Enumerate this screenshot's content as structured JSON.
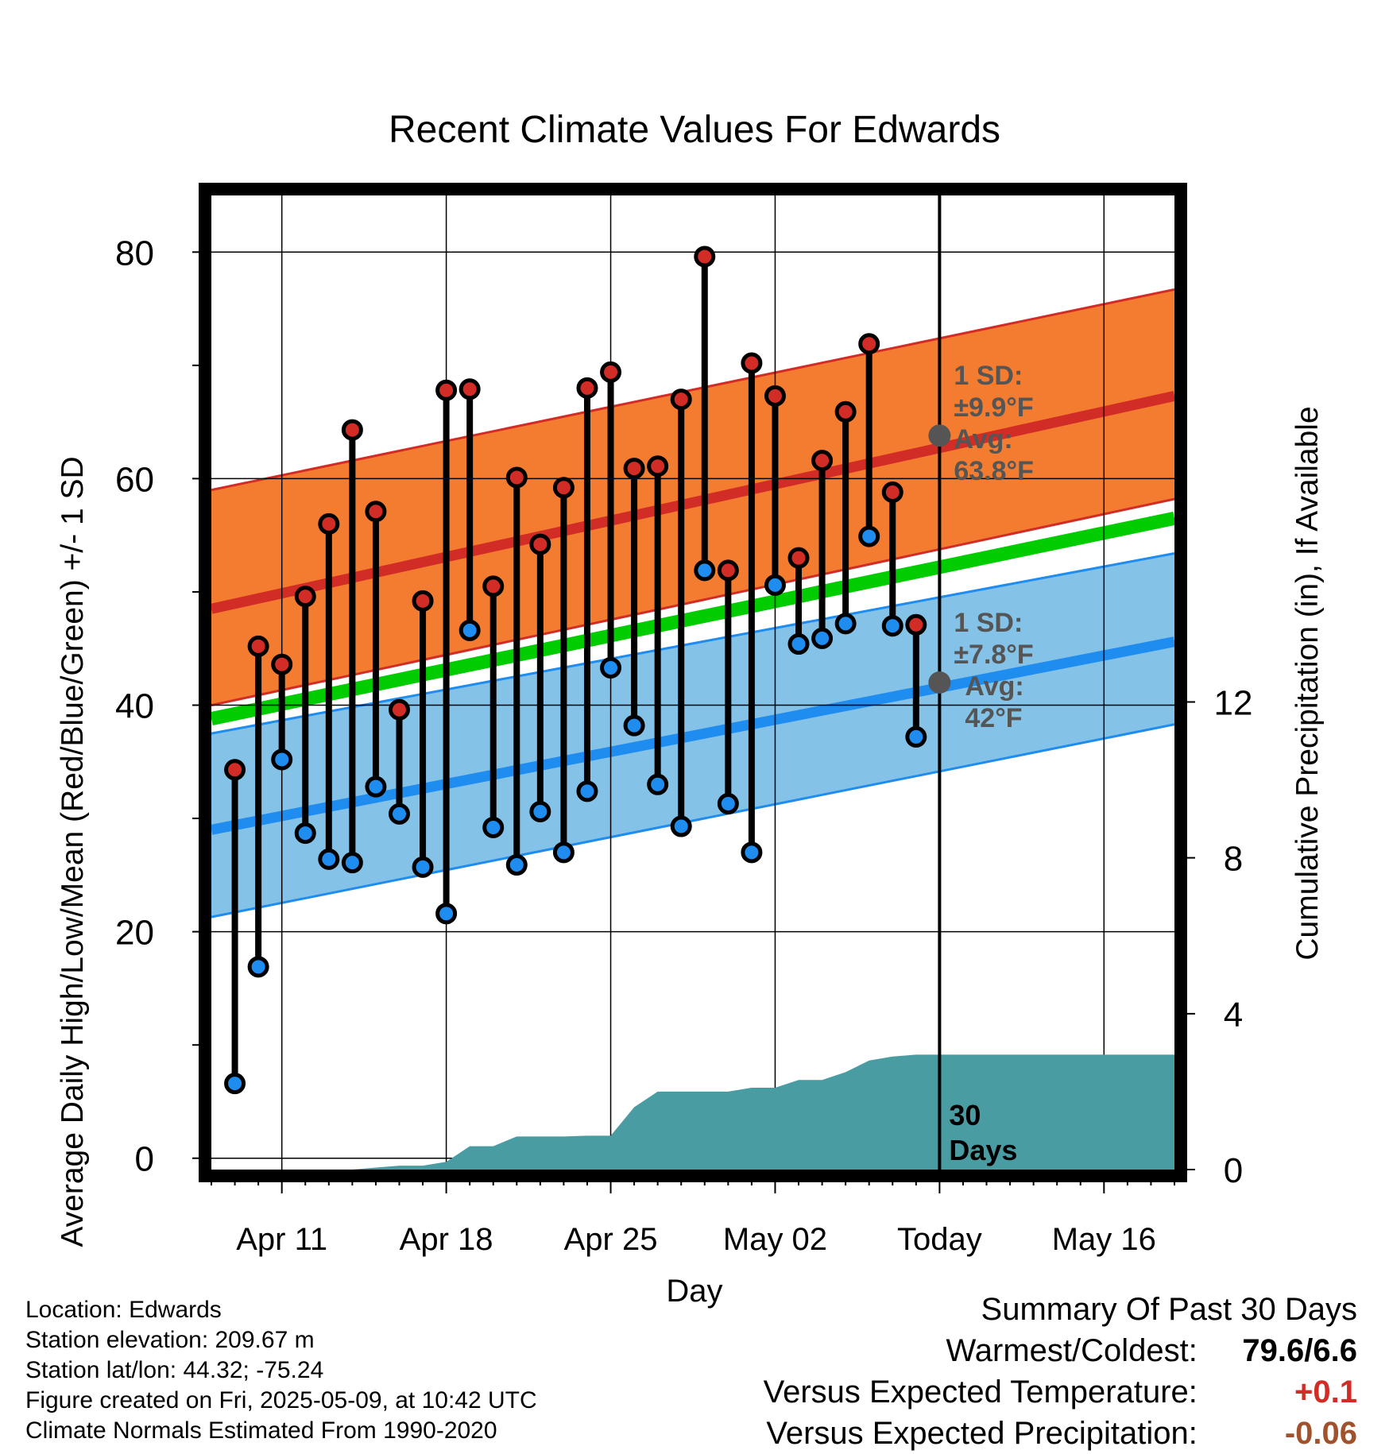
{
  "chart_data": {
    "type": "line",
    "title": "Recent Climate Values For Edwards",
    "xlabel": "Day",
    "ylabel": "Average Daily High/Low/Mean (Red/Blue/Green) +/- 1 SD",
    "y2label": "Cumulative Precipitation (in), If Available",
    "ylim": [
      -1,
      85
    ],
    "y2lim": [
      0,
      25
    ],
    "yticks": [
      0,
      20,
      40,
      60,
      80
    ],
    "y2ticks": [
      0,
      4,
      8,
      12
    ],
    "xlim": [
      "2025-04-08",
      "2025-05-19"
    ],
    "xticks": [
      {
        "date": "2025-04-11",
        "label": "Apr 11"
      },
      {
        "date": "2025-04-18",
        "label": "Apr 18"
      },
      {
        "date": "2025-04-25",
        "label": "Apr 25"
      },
      {
        "date": "2025-05-02",
        "label": "May 02"
      },
      {
        "date": "2025-05-09",
        "label": "Today"
      },
      {
        "date": "2025-05-16",
        "label": "May 16"
      }
    ],
    "today": "2025-05-09",
    "period_label": [
      "30",
      "Days"
    ],
    "colors": {
      "high": "#d22c26",
      "low": "#1f8cf0",
      "mean": "#00cc00",
      "high_band": "#f47c30",
      "low_band": "#84c2e8",
      "precip": "#4a9ca3",
      "annotation": "#555555"
    },
    "normals": {
      "dates": [
        "2025-04-08",
        "2025-05-19"
      ],
      "high_mean": [
        48.5,
        67.3
      ],
      "high_upper": [
        59.0,
        76.7
      ],
      "high_lower": [
        40.0,
        58.2
      ],
      "low_mean": [
        29.0,
        45.6
      ],
      "low_upper": [
        37.5,
        53.4
      ],
      "low_lower": [
        21.3,
        38.3
      ],
      "mean": [
        38.8,
        56.5
      ]
    },
    "daily": {
      "dates": [
        "2025-04-09",
        "2025-04-10",
        "2025-04-11",
        "2025-04-12",
        "2025-04-13",
        "2025-04-14",
        "2025-04-15",
        "2025-04-16",
        "2025-04-17",
        "2025-04-18",
        "2025-04-19",
        "2025-04-20",
        "2025-04-21",
        "2025-04-22",
        "2025-04-23",
        "2025-04-24",
        "2025-04-25",
        "2025-04-26",
        "2025-04-27",
        "2025-04-28",
        "2025-04-29",
        "2025-04-30",
        "2025-05-01",
        "2025-05-02",
        "2025-05-03",
        "2025-05-04",
        "2025-05-05",
        "2025-05-06",
        "2025-05-07",
        "2025-05-08"
      ],
      "high": [
        34.3,
        45.2,
        43.6,
        49.6,
        56.0,
        64.3,
        57.1,
        39.6,
        49.2,
        67.8,
        67.9,
        50.5,
        60.1,
        54.2,
        59.2,
        68.0,
        69.4,
        60.9,
        61.1,
        67.0,
        79.6,
        51.9,
        70.2,
        67.3,
        53.0,
        61.6,
        65.9,
        71.9,
        58.8,
        47.1
      ],
      "low": [
        6.6,
        16.9,
        35.2,
        28.7,
        26.4,
        26.1,
        32.8,
        30.4,
        25.7,
        21.6,
        46.6,
        29.2,
        25.9,
        30.6,
        27.0,
        32.4,
        43.3,
        38.2,
        33.0,
        29.3,
        51.9,
        31.3,
        27.0,
        50.6,
        45.4,
        45.9,
        47.2,
        54.9,
        47.0,
        37.2
      ]
    },
    "precip": {
      "dates": [
        "2025-04-08",
        "2025-04-12",
        "2025-04-13",
        "2025-04-14",
        "2025-04-15",
        "2025-04-16",
        "2025-04-17",
        "2025-04-18",
        "2025-04-19",
        "2025-04-20",
        "2025-04-21",
        "2025-04-22",
        "2025-04-23",
        "2025-04-24",
        "2025-04-25",
        "2025-04-26",
        "2025-04-27",
        "2025-04-28",
        "2025-04-29",
        "2025-04-30",
        "2025-05-01",
        "2025-05-02",
        "2025-05-03",
        "2025-05-04",
        "2025-05-05",
        "2025-05-06",
        "2025-05-07",
        "2025-05-08",
        "2025-05-09",
        "2025-05-19"
      ],
      "values": [
        0,
        0,
        0,
        0,
        0.05,
        0.1,
        0.1,
        0.2,
        0.6,
        0.6,
        0.85,
        0.85,
        0.85,
        0.87,
        0.87,
        1.6,
        2.0,
        2.0,
        2.0,
        2.0,
        2.1,
        2.1,
        2.3,
        2.3,
        2.5,
        2.8,
        2.9,
        2.95,
        2.95,
        2.95
      ]
    },
    "annotations": {
      "high": {
        "date": "2025-05-09",
        "value": 63.8,
        "sd_label": "1 SD:",
        "sd_value": "±9.9°F",
        "avg_label": "Avg:",
        "avg_value": "63.8°F"
      },
      "low": {
        "date": "2025-05-09",
        "value": 42.0,
        "sd_label": "1 SD:",
        "sd_value": "±7.8°F",
        "avg_label": "Avg:",
        "avg_value": "42°F"
      }
    }
  },
  "info": [
    "Location: Edwards",
    "Station elevation: 209.67 m",
    "Station lat/lon: 44.32; -75.24",
    "Figure created on Fri, 2025-05-09, at 10:42 UTC",
    "Climate Normals Estimated From 1990-2020"
  ],
  "summary": {
    "title": "Summary Of Past 30 Days",
    "warmest_coldest_label": "Warmest/Coldest:",
    "warmest_coldest_value": "79.6/6.6",
    "temp_label": "Versus Expected Temperature:",
    "temp_value": "+0.1",
    "temp_color": "#d22c26",
    "precip_label": "Versus Expected Precipitation:",
    "precip_value": "-0.06",
    "precip_color": "#a0522d"
  }
}
